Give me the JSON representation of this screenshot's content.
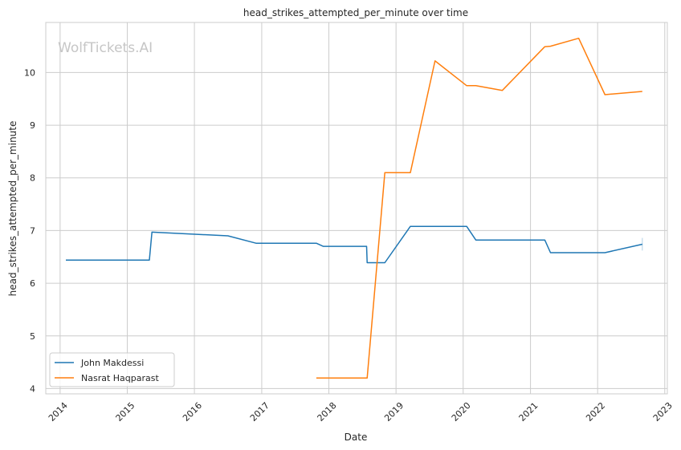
{
  "chart_data": {
    "type": "line",
    "title": "head_strikes_attempted_per_minute over time",
    "xlabel": "Date",
    "ylabel": "head_strikes_attempted_per_minute",
    "watermark": "WolfTickets.AI",
    "x_ticks": [
      "2014",
      "2015",
      "2016",
      "2017",
      "2018",
      "2019",
      "2020",
      "2021",
      "2022",
      "2023"
    ],
    "y_ticks": [
      "4",
      "5",
      "6",
      "7",
      "8",
      "9",
      "10"
    ],
    "xlim": [
      "2013-10-15",
      "2023-01-15"
    ],
    "ylim": [
      3.9,
      10.95
    ],
    "grid": true,
    "legend_position": "lower-left",
    "colors": {
      "John Makdessi": "#1f77b4",
      "Nasrat Haqparast": "#ff7f0e"
    },
    "series": [
      {
        "name": "John Makdessi",
        "color": "#1f77b4",
        "points": [
          [
            "2014-02-01",
            6.44
          ],
          [
            "2015-05-01",
            6.44
          ],
          [
            "2015-05-15",
            6.97
          ],
          [
            "2016-07-01",
            6.9
          ],
          [
            "2016-12-01",
            6.76
          ],
          [
            "2017-10-25",
            6.76
          ],
          [
            "2017-12-01",
            6.7
          ],
          [
            "2018-07-25",
            6.7
          ],
          [
            "2018-07-28",
            6.39
          ],
          [
            "2018-11-01",
            6.39
          ],
          [
            "2019-03-20",
            7.08
          ],
          [
            "2020-01-20",
            7.08
          ],
          [
            "2020-03-10",
            6.82
          ],
          [
            "2021-03-20",
            6.82
          ],
          [
            "2021-04-20",
            6.58
          ],
          [
            "2022-02-10",
            6.58
          ],
          [
            "2022-09-01",
            6.74
          ]
        ]
      },
      {
        "name": "Nasrat Haqparast",
        "color": "#ff7f0e",
        "points": [
          [
            "2017-10-25",
            4.2
          ],
          [
            "2018-07-28",
            4.2
          ],
          [
            "2018-11-01",
            8.1
          ],
          [
            "2019-03-20",
            8.1
          ],
          [
            "2019-08-01",
            10.22
          ],
          [
            "2020-01-20",
            9.75
          ],
          [
            "2020-03-10",
            9.75
          ],
          [
            "2020-08-01",
            9.66
          ],
          [
            "2021-03-20",
            10.49
          ],
          [
            "2021-04-20",
            10.5
          ],
          [
            "2021-09-20",
            10.65
          ],
          [
            "2022-02-10",
            9.58
          ],
          [
            "2022-09-01",
            9.64
          ]
        ]
      }
    ]
  }
}
